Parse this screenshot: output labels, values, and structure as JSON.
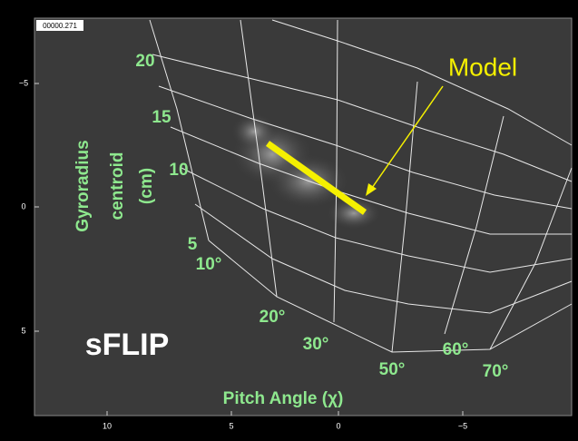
{
  "timestamp": "00000.271",
  "x_axis": {
    "ticks": [
      "10",
      "5",
      "0",
      "−5"
    ]
  },
  "y_axis": {
    "ticks": [
      "−5",
      "0",
      "5"
    ]
  },
  "gyroradius_labels": [
    "20",
    "15",
    "10",
    "5"
  ],
  "pitch_angle_labels": [
    "10°",
    "20°",
    "30°",
    "50°",
    "60°",
    "70°"
  ],
  "y_title": [
    "Gyroradius",
    "centroid",
    "(cm)"
  ],
  "x_title": "Pitch Angle (χ)",
  "instrument": "sFLIP",
  "annotation": "Model"
}
